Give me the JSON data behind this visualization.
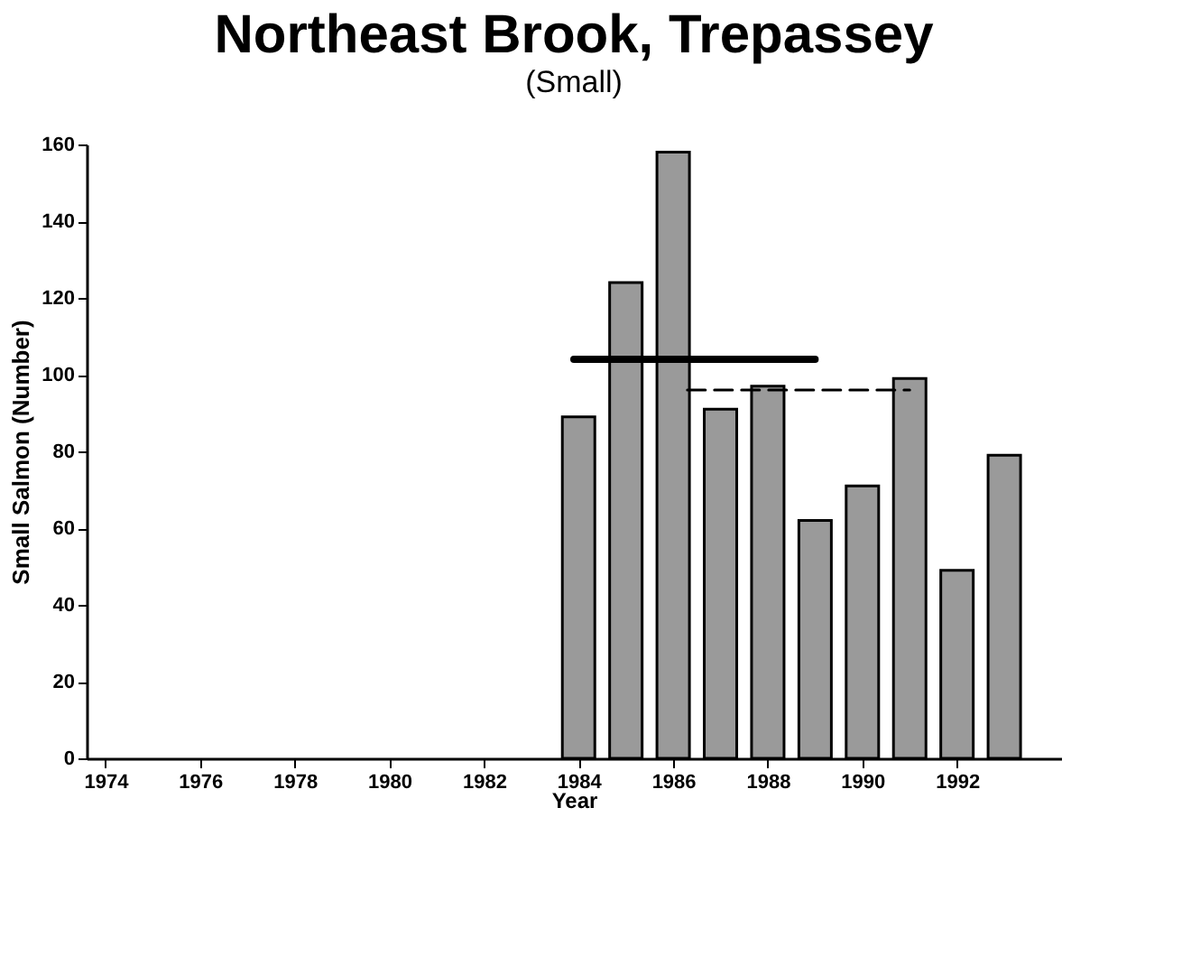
{
  "chart_data": {
    "type": "bar",
    "title": "Northeast Brook, Trepassey",
    "subtitle": "(Small)",
    "xlabel": "Year",
    "ylabel": "Small Salmon (Number)",
    "series": [
      {
        "x": [
          1984,
          1985,
          1986,
          1987,
          1988,
          1989,
          1990,
          1991,
          1992,
          1993
        ],
        "color": "#9a9a9a",
        "values": [
          89,
          124,
          158,
          91,
          97,
          62,
          71,
          99,
          49,
          79
        ]
      },
      {
        "type": "line",
        "color": "#000000",
        "x": [
          1983.9,
          1989.0
        ],
        "values": [
          104,
          104
        ],
        "line_style": "solid"
      },
      {
        "type": "line",
        "color": "#000000",
        "x": [
          1986.3,
          1991.0
        ],
        "values": [
          96,
          96
        ],
        "line_style": "dashed"
      }
    ],
    "xlim": [
      1973.6,
      1994.2
    ],
    "xticks": [
      1974,
      1976,
      1978,
      1980,
      1982,
      1984,
      1986,
      1988,
      1990,
      1992
    ],
    "ylim": [
      0,
      160
    ],
    "yticks": [
      0,
      20,
      40,
      60,
      80,
      100,
      120,
      140,
      160
    ],
    "grid": false
  }
}
